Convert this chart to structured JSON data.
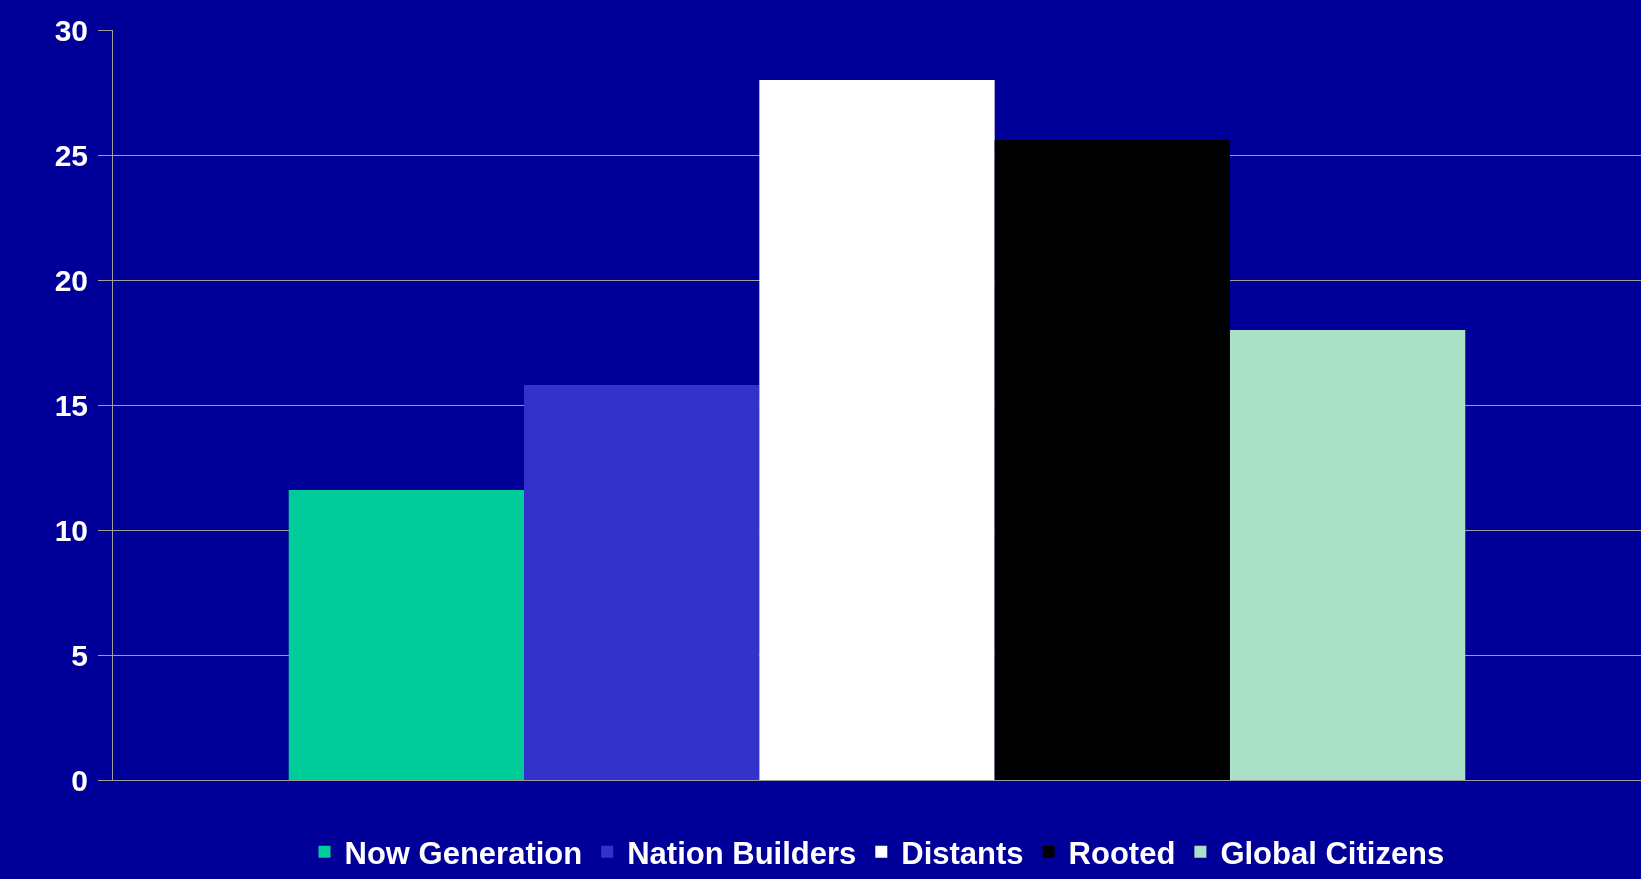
{
  "chart_data": {
    "type": "bar",
    "categories": [
      null
    ],
    "series": [
      {
        "name": "Now Generation",
        "color": "#00cc99",
        "values": [
          11.6
        ]
      },
      {
        "name": "Nation Builders",
        "color": "#3333cc",
        "values": [
          15.8
        ]
      },
      {
        "name": "Distants",
        "color": "#ffffff",
        "values": [
          28.0
        ]
      },
      {
        "name": "Rooted",
        "color": "#000000",
        "values": [
          25.6
        ]
      },
      {
        "name": "Global Citizens",
        "color": "#aae0c8",
        "values": [
          18.0
        ]
      }
    ],
    "ylim": [
      0,
      30
    ],
    "yticks": [
      0,
      5,
      10,
      15,
      20,
      25,
      30
    ],
    "grid": "y",
    "legend": "bottom"
  }
}
